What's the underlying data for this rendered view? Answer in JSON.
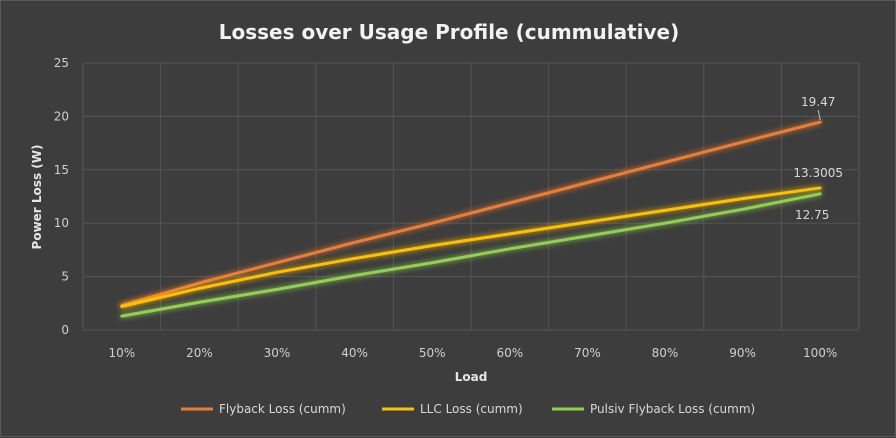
{
  "chart_data": {
    "type": "line",
    "title": "Losses over Usage Profile (cummulative)",
    "xlabel": "Load",
    "ylabel": "Power Loss (W)",
    "categories": [
      "10%",
      "20%",
      "30%",
      "40%",
      "50%",
      "60%",
      "70%",
      "80%",
      "90%",
      "100%"
    ],
    "ylim": [
      0,
      25
    ],
    "yticks": [
      "0",
      "5",
      "10",
      "15",
      "20",
      "25"
    ],
    "grid": true,
    "legend_position": "bottom",
    "series": [
      {
        "name": "Flyback Loss (cumm)",
        "color": "#ed7d31",
        "values": [
          2.3,
          4.4,
          6.3,
          8.2,
          10.0,
          11.9,
          13.8,
          15.7,
          17.6,
          19.47
        ],
        "end_label": "19.47"
      },
      {
        "name": "LLC Loss (cumm)",
        "color": "#ffc000",
        "values": [
          2.2,
          3.9,
          5.4,
          6.7,
          7.9,
          9.0,
          10.1,
          11.2,
          12.3,
          13.3005
        ],
        "end_label": "13.3005"
      },
      {
        "name": "Pulsiv Flyback Loss (cumm)",
        "color": "#92d050",
        "values": [
          1.3,
          2.6,
          3.8,
          5.1,
          6.3,
          7.6,
          8.8,
          10.0,
          11.3,
          12.75
        ],
        "end_label": "12.75"
      }
    ]
  }
}
